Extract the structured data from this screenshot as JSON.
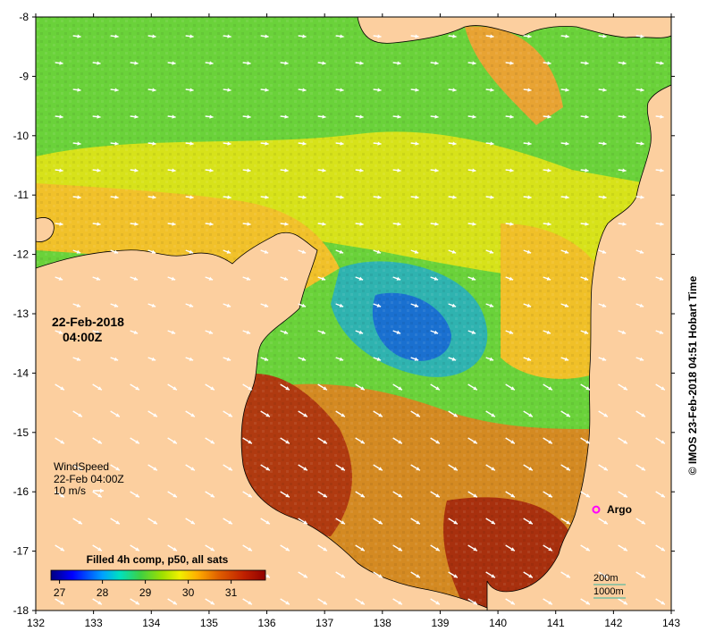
{
  "map": {
    "date_label": "22-Feb-2018",
    "time_label": "04:00Z",
    "credit": "© IMOS 23-Feb-2018 04:51 Hobart Time",
    "land_color": "#fccf9f",
    "axes": {
      "lon_ticks": [
        "132",
        "133",
        "134",
        "135",
        "136",
        "137",
        "138",
        "139",
        "140",
        "141",
        "142",
        "143"
      ],
      "lat_ticks": [
        "-8",
        "-9",
        "-10",
        "-11",
        "-12",
        "-13",
        "-14",
        "-15",
        "-16",
        "-17",
        "-18"
      ],
      "lon_range": [
        132,
        143
      ],
      "lat_range": [
        -18,
        -8
      ]
    },
    "wind_legend": {
      "title": "WindSpeed",
      "time": "22-Feb 04:00Z",
      "scale_label": "10 m/s"
    },
    "argo": {
      "label": "Argo",
      "color": "#ff00ff",
      "lon": 141.7,
      "lat": -16.3
    },
    "bathymetry_legend": {
      "contour_1": "200m",
      "contour_2": "1000m",
      "color": "#33b5a0"
    },
    "colorbar": {
      "title": "Filled 4h comp, p50, all sats",
      "tick_labels": [
        "27",
        "28",
        "29",
        "30",
        "31"
      ],
      "tick_values": [
        27,
        28,
        29,
        30,
        31
      ],
      "range": [
        26.8,
        31.8
      ],
      "colors": [
        "#000080",
        "#0000ff",
        "#00a0ff",
        "#00e0c0",
        "#40d040",
        "#a0e000",
        "#f0f000",
        "#ffb000",
        "#e06000",
        "#c02000",
        "#900000"
      ]
    }
  }
}
